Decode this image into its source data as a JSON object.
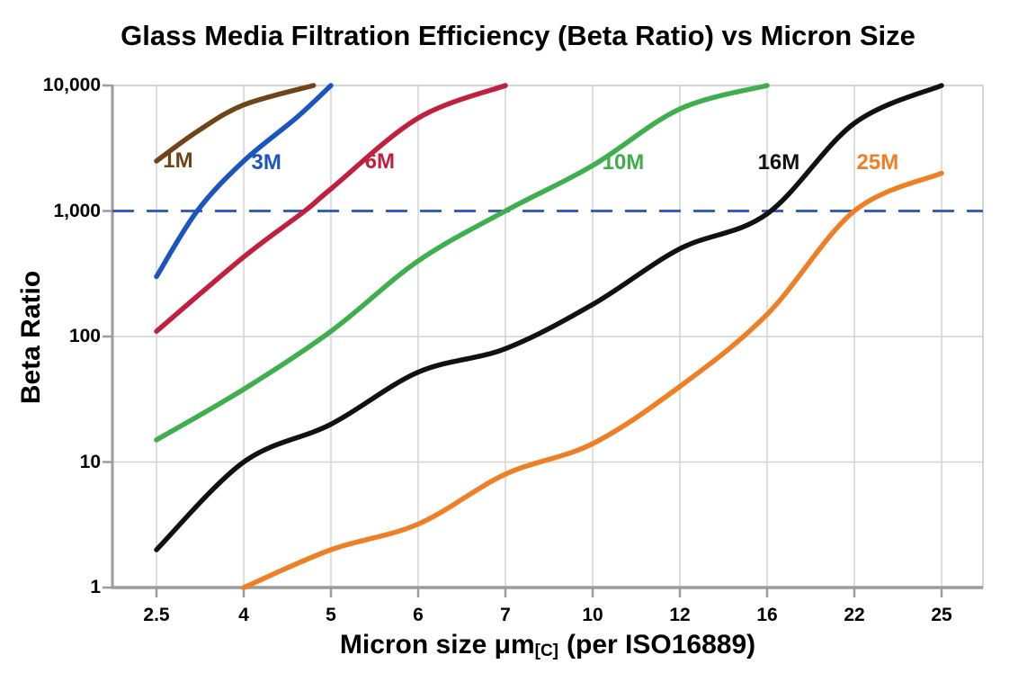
{
  "title": "Glass Media Filtration Efficiency (Beta Ratio) vs Micron Size",
  "y_axis": {
    "label": "Beta Ratio",
    "scale": "log",
    "ticks": [
      {
        "label": "10,000",
        "value": 10000
      },
      {
        "label": "1,000",
        "value": 1000
      },
      {
        "label": "100",
        "value": 100
      },
      {
        "label": "10",
        "value": 10
      },
      {
        "label": "1",
        "value": 1
      }
    ]
  },
  "x_axis": {
    "label_main": "Micron size μm",
    "label_sub": "[C]",
    "label_rest": "(per ISO16889)",
    "ticks": [
      "2.5",
      "4",
      "5",
      "6",
      "7",
      "10",
      "12",
      "16",
      "22",
      "25"
    ]
  },
  "reference_line": {
    "value": 1000,
    "color": "#3560c0",
    "style": "dashed"
  },
  "chart_data": {
    "type": "line",
    "x_scale": "categorical",
    "y_scale": "log",
    "ylim": [
      1,
      10000
    ],
    "grid": true,
    "categories": [
      2.5,
      4,
      5,
      6,
      7,
      10,
      12,
      16,
      22,
      25
    ],
    "series": [
      {
        "name": "1M",
        "color": "#6f4518",
        "label_pos": {
          "micron": 2.87,
          "beta": 2500
        },
        "points": [
          [
            2.5,
            2500
          ],
          [
            3.2,
            4300
          ],
          [
            4,
            7000
          ],
          [
            4.8,
            10000
          ]
        ]
      },
      {
        "name": "3M",
        "color": "#1c55be",
        "label_pos": {
          "micron": 4.26,
          "beta": 2400
        },
        "points": [
          [
            2.5,
            300
          ],
          [
            3.2,
            1000
          ],
          [
            4,
            2500
          ],
          [
            4.6,
            5500
          ],
          [
            5,
            10000
          ]
        ]
      },
      {
        "name": "6M",
        "color": "#c0203e",
        "label_pos": {
          "micron": 5.56,
          "beta": 2450
        },
        "points": [
          [
            2.5,
            110
          ],
          [
            4,
            430
          ],
          [
            4.7,
            1000
          ],
          [
            5,
            1500
          ],
          [
            6,
            5500
          ],
          [
            7,
            10000
          ]
        ]
      },
      {
        "name": "10M",
        "color": "#3fae4c",
        "label_pos": {
          "micron": 10.7,
          "beta": 2400
        },
        "points": [
          [
            2.5,
            15
          ],
          [
            4,
            38
          ],
          [
            5,
            110
          ],
          [
            6,
            400
          ],
          [
            7,
            1000
          ],
          [
            10,
            2300
          ],
          [
            12,
            6500
          ],
          [
            16,
            10000
          ]
        ]
      },
      {
        "name": "16M",
        "color": "#111111",
        "label_pos": {
          "micron": 16.8,
          "beta": 2400
        },
        "points": [
          [
            2.5,
            2
          ],
          [
            4,
            10
          ],
          [
            5,
            20
          ],
          [
            6,
            52
          ],
          [
            7,
            80
          ],
          [
            10,
            180
          ],
          [
            12,
            500
          ],
          [
            16,
            950
          ],
          [
            22,
            5000
          ],
          [
            25,
            10000
          ]
        ]
      },
      {
        "name": "25M",
        "color": "#ef7f24",
        "label_pos": {
          "micron": 22.8,
          "beta": 2400
        },
        "points": [
          [
            4,
            1
          ],
          [
            5,
            2
          ],
          [
            6,
            3.2
          ],
          [
            7,
            8
          ],
          [
            10,
            14
          ],
          [
            12,
            40
          ],
          [
            16,
            150
          ],
          [
            22,
            1000
          ],
          [
            25,
            2000
          ]
        ]
      }
    ]
  }
}
